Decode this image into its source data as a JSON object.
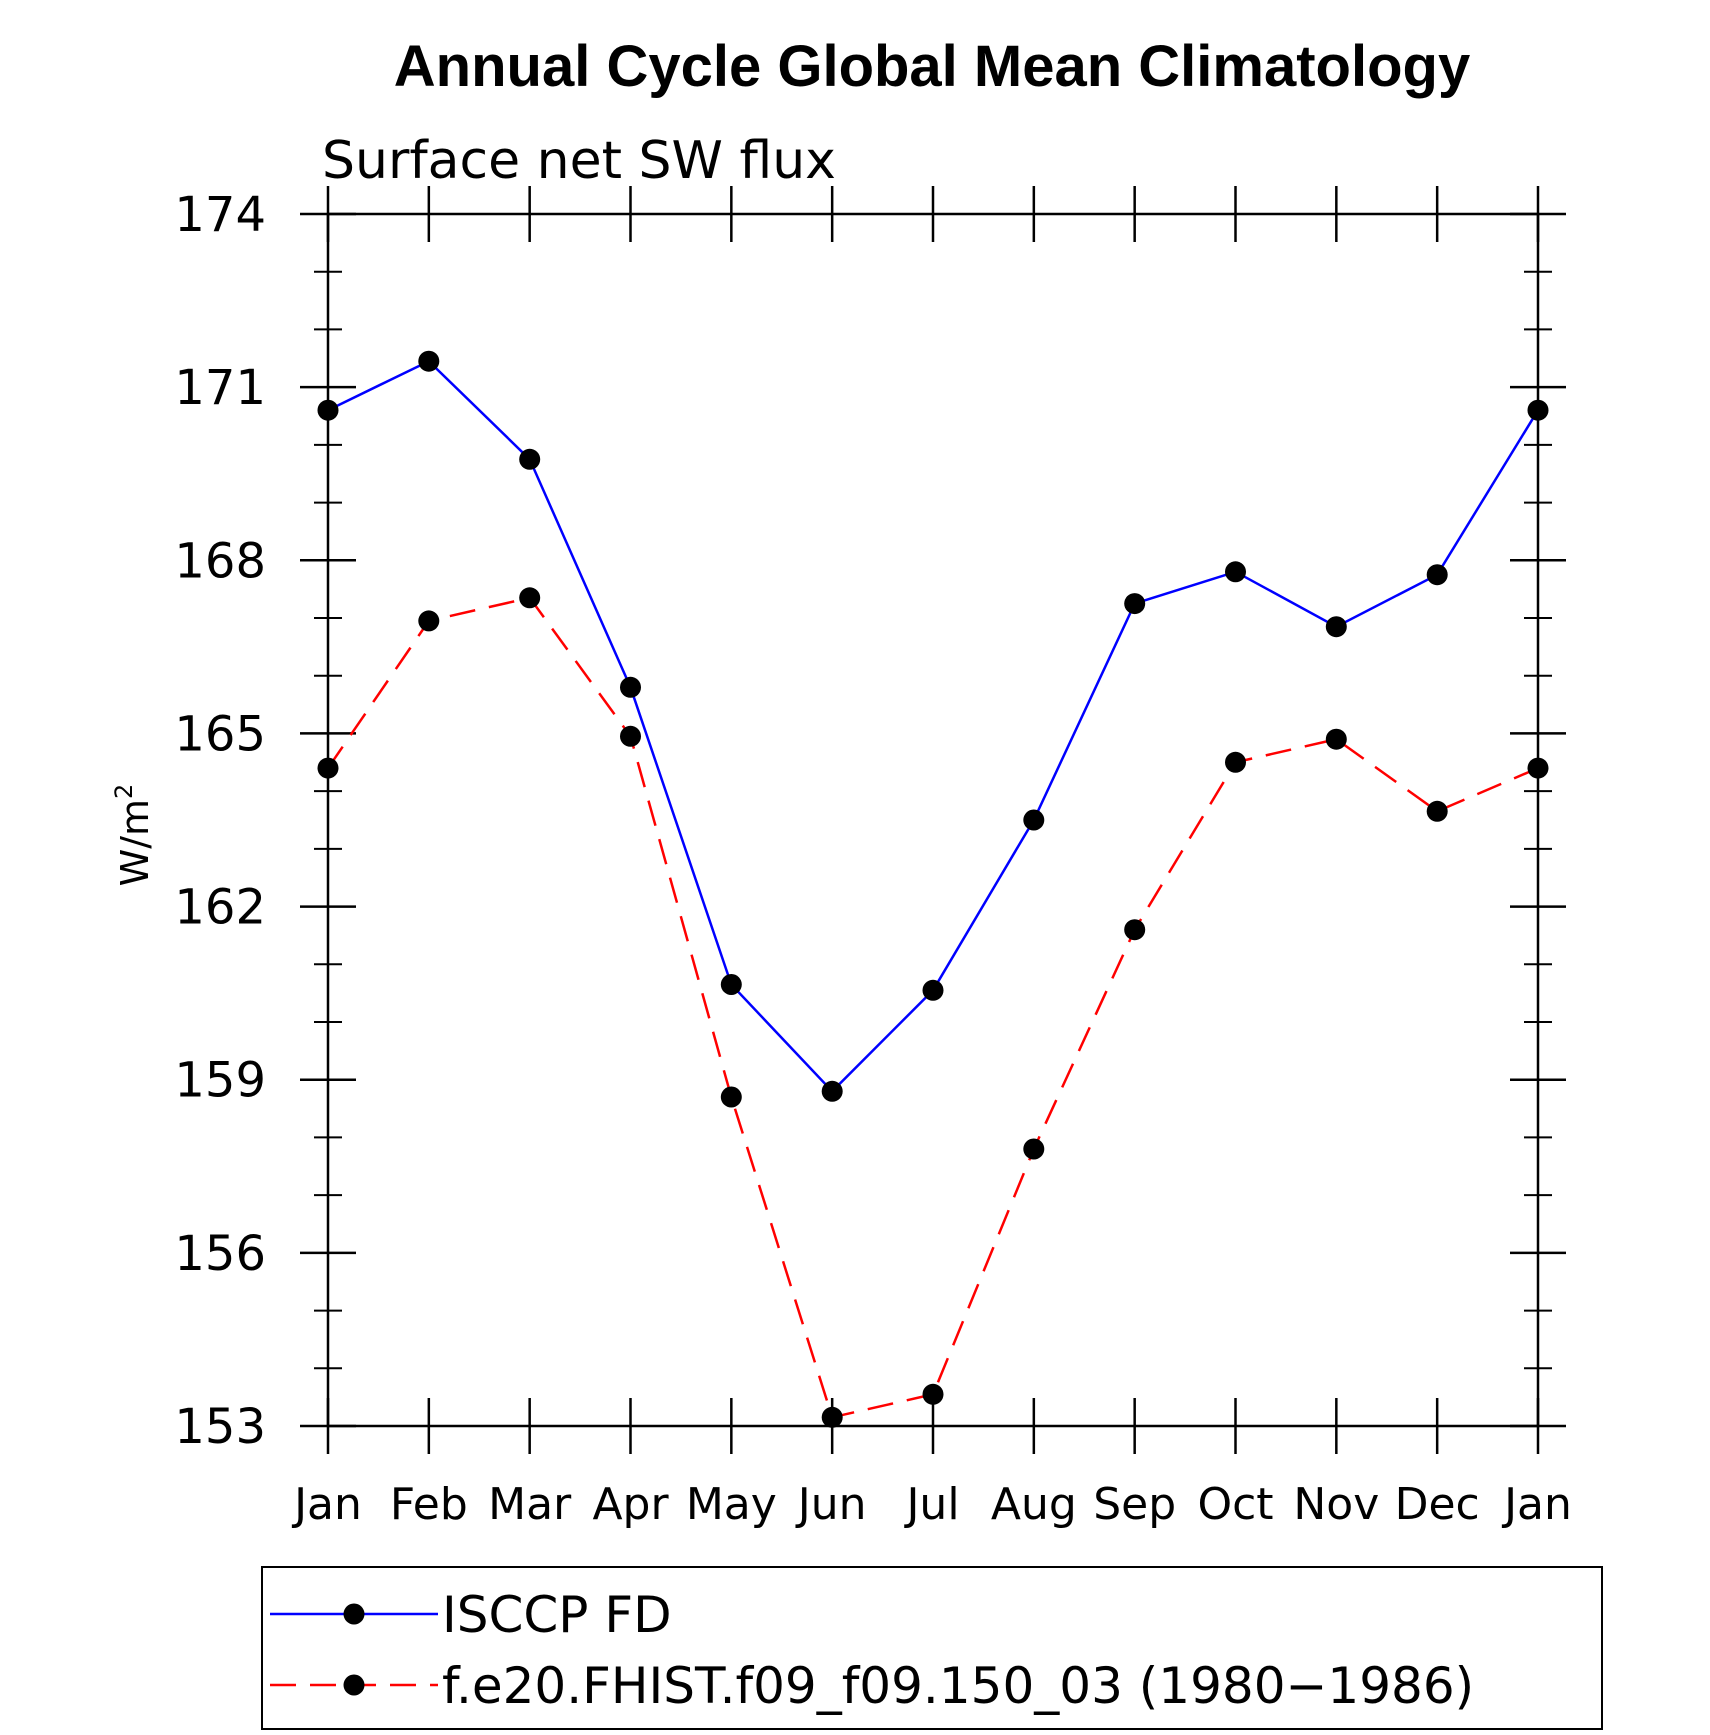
{
  "chart_data": {
    "type": "line",
    "title": "Annual Cycle Global Mean Climatology",
    "subtitle": "Surface net SW flux",
    "ylabel_base": "W/m",
    "ylabel_sup": "2",
    "x": [
      "Jan",
      "Feb",
      "Mar",
      "Apr",
      "May",
      "Jun",
      "Jul",
      "Aug",
      "Sep",
      "Oct",
      "Nov",
      "Dec",
      "Jan"
    ],
    "ylim": [
      153,
      174
    ],
    "yticks": [
      153,
      156,
      159,
      162,
      165,
      168,
      171,
      174
    ],
    "series": [
      {
        "name": "ISCCP FD",
        "color": "#0000ff",
        "dash": "solid",
        "values": [
          170.6,
          171.45,
          169.75,
          165.8,
          160.65,
          158.8,
          160.55,
          163.5,
          167.25,
          167.8,
          166.85,
          167.75,
          170.6
        ]
      },
      {
        "name": "f.e20.FHIST.f09_f09.150_03 (1980−1986)",
        "color": "#ff0000",
        "dash": "dashed",
        "values": [
          164.4,
          166.95,
          167.35,
          164.95,
          158.7,
          153.15,
          153.55,
          157.8,
          161.6,
          164.5,
          164.9,
          163.65,
          164.4
        ]
      }
    ],
    "legend_position": "bottom",
    "grid": false
  }
}
